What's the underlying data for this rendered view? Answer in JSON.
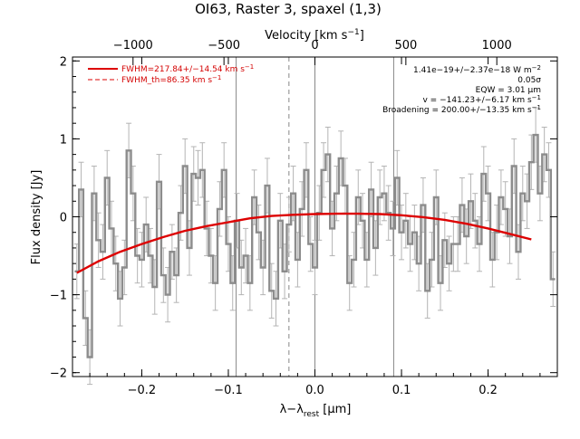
{
  "chart_data": {
    "type": "line",
    "title": "OI63, Raster 3, spaxel (1,3)",
    "xlabel": "λ−λ",
    "xlabel_sub": "rest",
    "xlabel_unit": " [μm]",
    "ylabel": "Flux density [Jy]",
    "top_xlabel": "Velocity [km s",
    "top_xlabel_sup": "−1",
    "top_xlabel_end": "]",
    "xlim": [
      -0.28,
      0.28
    ],
    "ylim": [
      -2.05,
      2.05
    ],
    "x_ticks": [
      -0.2,
      -0.1,
      0.0,
      0.1,
      0.2
    ],
    "x_tick_labels": [
      "−0.2",
      "−0.1",
      "0.0",
      "0.1",
      "0.2"
    ],
    "y_ticks": [
      -2,
      -1,
      0,
      1,
      2
    ],
    "y_tick_labels": [
      "−2",
      "−1",
      "0",
      "1",
      "2"
    ],
    "top_ticks_kms": [
      -1000,
      -500,
      0,
      500,
      1000
    ],
    "top_tick_labels": [
      "−1000",
      "−500",
      "0",
      "500",
      "1000"
    ],
    "kms_per_um": 4760,
    "vertical_lines_solid": [
      -0.091,
      0.0,
      0.091
    ],
    "vertical_line_dashed": -0.03,
    "annotations": [
      "1.41e−19+/−2.37e−18 W m",
      "0.05σ",
      "EQW = 3.01 μm",
      "v = −141.23+/−6.17 km s",
      "Broadening = 200.00+/−13.35 km s"
    ],
    "legend": [
      {
        "label": "FWHM=217.84+/−14.54 km s",
        "style": "solid"
      },
      {
        "label": "FWHM_th=86.35 km s",
        "style": "dashed"
      }
    ],
    "colors": {
      "data": "#8c8c8c",
      "fit": "#dd0000",
      "axis": "#000000",
      "grid": "#888888",
      "errorbar": "#b4b4b4"
    },
    "series": [
      {
        "name": "data",
        "x": [
          -0.275,
          -0.27,
          -0.265,
          -0.26,
          -0.255,
          -0.25,
          -0.245,
          -0.24,
          -0.235,
          -0.23,
          -0.225,
          -0.22,
          -0.215,
          -0.21,
          -0.205,
          -0.2,
          -0.195,
          -0.19,
          -0.185,
          -0.18,
          -0.175,
          -0.17,
          -0.165,
          -0.16,
          -0.155,
          -0.15,
          -0.145,
          -0.14,
          -0.135,
          -0.13,
          -0.125,
          -0.12,
          -0.115,
          -0.11,
          -0.105,
          -0.1,
          -0.095,
          -0.09,
          -0.085,
          -0.08,
          -0.075,
          -0.07,
          -0.065,
          -0.06,
          -0.055,
          -0.05,
          -0.045,
          -0.04,
          -0.035,
          -0.03,
          -0.025,
          -0.02,
          -0.015,
          -0.01,
          -0.005,
          0.0,
          0.005,
          0.01,
          0.015,
          0.02,
          0.025,
          0.03,
          0.035,
          0.04,
          0.045,
          0.05,
          0.055,
          0.06,
          0.065,
          0.07,
          0.075,
          0.08,
          0.085,
          0.09,
          0.095,
          0.1,
          0.105,
          0.11,
          0.115,
          0.12,
          0.125,
          0.13,
          0.135,
          0.14,
          0.145,
          0.15,
          0.155,
          0.16,
          0.165,
          0.17,
          0.175,
          0.18,
          0.185,
          0.19,
          0.195,
          0.2,
          0.205,
          0.21,
          0.215,
          0.22,
          0.225,
          0.23,
          0.235,
          0.24,
          0.245,
          0.25,
          0.255,
          0.26,
          0.265,
          0.27,
          0.275
        ],
        "y": [
          -0.7,
          0.35,
          -1.3,
          -1.8,
          0.3,
          -0.3,
          -0.45,
          0.5,
          -0.15,
          -0.6,
          -1.05,
          -0.65,
          0.85,
          0.3,
          -0.5,
          -0.55,
          -0.1,
          -0.5,
          -0.9,
          0.45,
          -0.75,
          -1.0,
          -0.45,
          -0.75,
          0.05,
          0.65,
          -0.4,
          0.55,
          0.5,
          0.6,
          -0.15,
          -0.5,
          -0.85,
          0.1,
          0.6,
          -0.35,
          -0.85,
          -0.05,
          -0.65,
          -0.5,
          -0.85,
          0.25,
          -0.2,
          -0.65,
          0.4,
          -0.95,
          -1.05,
          -0.05,
          -0.7,
          -0.1,
          0.3,
          -0.55,
          0.1,
          0.6,
          -0.35,
          -0.65,
          0.05,
          0.6,
          0.8,
          -0.15,
          0.3,
          0.75,
          0.4,
          -0.85,
          -0.55,
          0.25,
          -0.05,
          -0.55,
          0.35,
          -0.4,
          0.25,
          0.3,
          0.05,
          -0.15,
          0.5,
          -0.2,
          -0.05,
          -0.35,
          -0.2,
          -0.6,
          0.15,
          -0.95,
          -0.55,
          0.25,
          -0.85,
          -0.3,
          -0.6,
          -0.35,
          -0.35,
          0.15,
          -0.25,
          0.2,
          -0.05,
          -0.35,
          0.55,
          0.3,
          -0.55,
          -0.2,
          0.25,
          0.1,
          -0.25,
          0.65,
          -0.45,
          0.3,
          0.2,
          0.7,
          1.05,
          0.3,
          0.8,
          0.6,
          -0.8
        ],
        "yerr": 0.35
      },
      {
        "name": "fit",
        "x": [
          -0.275,
          -0.25,
          -0.225,
          -0.2,
          -0.175,
          -0.15,
          -0.125,
          -0.1,
          -0.075,
          -0.05,
          -0.025,
          0.0,
          0.025,
          0.05,
          0.075,
          0.1,
          0.125,
          0.15,
          0.175,
          0.2,
          0.225,
          0.25
        ],
        "y": [
          -0.72,
          -0.57,
          -0.45,
          -0.35,
          -0.26,
          -0.18,
          -0.12,
          -0.07,
          -0.02,
          0.01,
          0.025,
          0.035,
          0.04,
          0.04,
          0.035,
          0.02,
          -0.005,
          -0.04,
          -0.09,
          -0.15,
          -0.22,
          -0.29
        ]
      }
    ]
  }
}
